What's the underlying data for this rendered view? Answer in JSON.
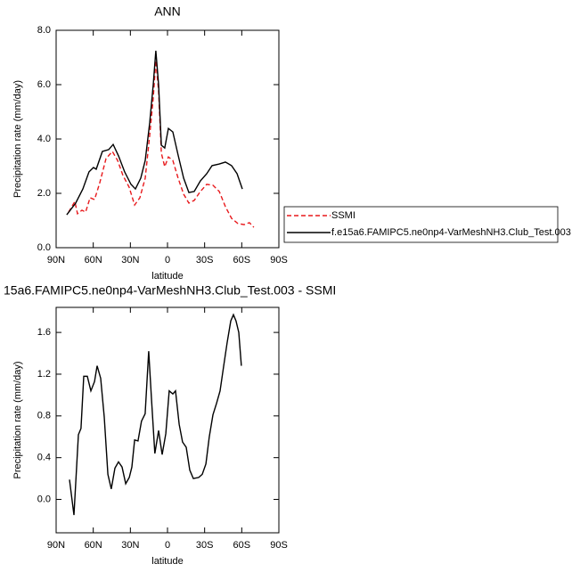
{
  "chart_data": [
    {
      "type": "line",
      "title": "ANN",
      "xlabel": "latitude",
      "ylabel": "Precipitation rate (mm/day)",
      "xlim": [
        90,
        -90
      ],
      "xticks": [
        {
          "value": 90,
          "label": "90N"
        },
        {
          "value": 60,
          "label": "60N"
        },
        {
          "value": 30,
          "label": "30N"
        },
        0,
        {
          "value": -30,
          "label": "30S"
        },
        {
          "value": -60,
          "label": "60S"
        },
        {
          "value": -90,
          "label": "90S"
        }
      ],
      "ylim": [
        0,
        8
      ],
      "yticks": [
        {
          "value": 0,
          "label": "0.0"
        },
        {
          "value": 2,
          "label": "2.0"
        },
        {
          "value": 4,
          "label": "4.0"
        },
        {
          "value": 6,
          "label": "6.0"
        },
        {
          "value": 8,
          "label": "8.0"
        }
      ],
      "legend": "right",
      "series": [
        {
          "name": "SSMI",
          "color": "#e8191c",
          "line_style": "dashed",
          "x": [
            79.9,
            74.9,
            72.7,
            69.1,
            66.2,
            62.6,
            59.0,
            54.7,
            49.7,
            44.6,
            40.3,
            36.0,
            31.0,
            26.6,
            22.3,
            18.0,
            14.4,
            11.5,
            9.4,
            7.2,
            5.0,
            2.2,
            -0.7,
            -4.3,
            -8.6,
            -13.0,
            -17.3,
            -21.6,
            -26.6,
            -31.7,
            -36.7,
            -41.8,
            -46.8,
            -51.8,
            -56.9,
            -61.9,
            -66.2,
            -69.8
          ],
          "values": [
            1.31,
            1.7,
            1.25,
            1.38,
            1.31,
            1.84,
            1.77,
            2.39,
            3.28,
            3.54,
            3.21,
            2.66,
            2.23,
            1.57,
            1.84,
            2.56,
            4.13,
            5.51,
            6.89,
            5.77,
            3.48,
            2.98,
            3.34,
            3.21,
            2.56,
            1.97,
            1.64,
            1.74,
            2.07,
            2.33,
            2.3,
            2.07,
            1.51,
            1.08,
            0.89,
            0.85,
            0.92,
            0.75
          ]
        },
        {
          "name": "f.e15a6.FAMIPC5.ne0np4-VarMeshNH3.Club_Test.003",
          "color": "#000000",
          "line_style": "solid",
          "x": [
            81.4,
            74.2,
            68.4,
            63.4,
            59.8,
            57.6,
            52.6,
            47.5,
            43.9,
            39.6,
            34.6,
            29.5,
            25.9,
            21.6,
            18.0,
            14.4,
            11.5,
            9.4,
            7.2,
            5.0,
            2.2,
            -0.7,
            -4.3,
            -8.6,
            -13.0,
            -17.3,
            -21.6,
            -26.6,
            -31.7,
            -36.0,
            -41.8,
            -46.8,
            -51.8,
            -56.2,
            -60.5
          ],
          "values": [
            1.21,
            1.64,
            2.16,
            2.79,
            2.95,
            2.89,
            3.54,
            3.61,
            3.8,
            3.38,
            2.79,
            2.33,
            2.16,
            2.56,
            3.21,
            4.59,
            6.0,
            7.25,
            6.0,
            3.77,
            3.67,
            4.39,
            4.26,
            3.41,
            2.56,
            2.03,
            2.07,
            2.46,
            2.72,
            3.02,
            3.08,
            3.15,
            3.02,
            2.72,
            2.16
          ]
        }
      ]
    },
    {
      "type": "line",
      "title": "15a6.FAMIPC5.ne0np4-VarMeshNH3.Club_Test.003 - SSMI",
      "xlabel": "latitude",
      "ylabel": "Precipitation rate (mm/day)",
      "xlim": [
        90,
        -90
      ],
      "xticks": [
        {
          "value": 90,
          "label": "90N"
        },
        {
          "value": 60,
          "label": "60N"
        },
        {
          "value": 30,
          "label": "30N"
        },
        0,
        {
          "value": -30,
          "label": "30S"
        },
        {
          "value": -60,
          "label": "60S"
        },
        {
          "value": -90,
          "label": "90S"
        }
      ],
      "ylim": [
        -0.32,
        1.84
      ],
      "yticks": [
        {
          "value": 0,
          "label": "0.0"
        },
        0.4,
        0.8,
        1.2,
        1.6
      ],
      "series": [
        {
          "color": "#000000",
          "line_style": "solid",
          "x": [
            79.2,
            75.6,
            72.0,
            69.9,
            67.7,
            64.8,
            61.9,
            59.0,
            56.9,
            54.0,
            51.1,
            48.2,
            45.4,
            42.5,
            39.6,
            36.7,
            33.8,
            30.9,
            28.8,
            26.6,
            23.8,
            21.0,
            18.1,
            15.2,
            13.0,
            10.2,
            7.2,
            4.3,
            1.4,
            -1.4,
            -4.3,
            -6.5,
            -9.4,
            -12.2,
            -15.1,
            -18.0,
            -20.9,
            -25.2,
            -28.1,
            -31.0,
            -33.8,
            -36.7,
            -39.6,
            -42.5,
            -45.3,
            -48.2,
            -51.1,
            -53.3,
            -55.4,
            -57.6,
            -59.7
          ],
          "values": [
            0.19,
            -0.15,
            0.62,
            0.68,
            1.18,
            1.18,
            1.04,
            1.13,
            1.28,
            1.16,
            0.79,
            0.24,
            0.1,
            0.3,
            0.36,
            0.31,
            0.15,
            0.21,
            0.31,
            0.57,
            0.56,
            0.75,
            0.82,
            1.42,
            0.98,
            0.44,
            0.66,
            0.43,
            0.63,
            1.04,
            1.01,
            1.04,
            0.72,
            0.55,
            0.5,
            0.28,
            0.2,
            0.21,
            0.24,
            0.34,
            0.6,
            0.81,
            0.92,
            1.04,
            1.27,
            1.5,
            1.71,
            1.77,
            1.71,
            1.6,
            1.28
          ]
        }
      ]
    }
  ]
}
